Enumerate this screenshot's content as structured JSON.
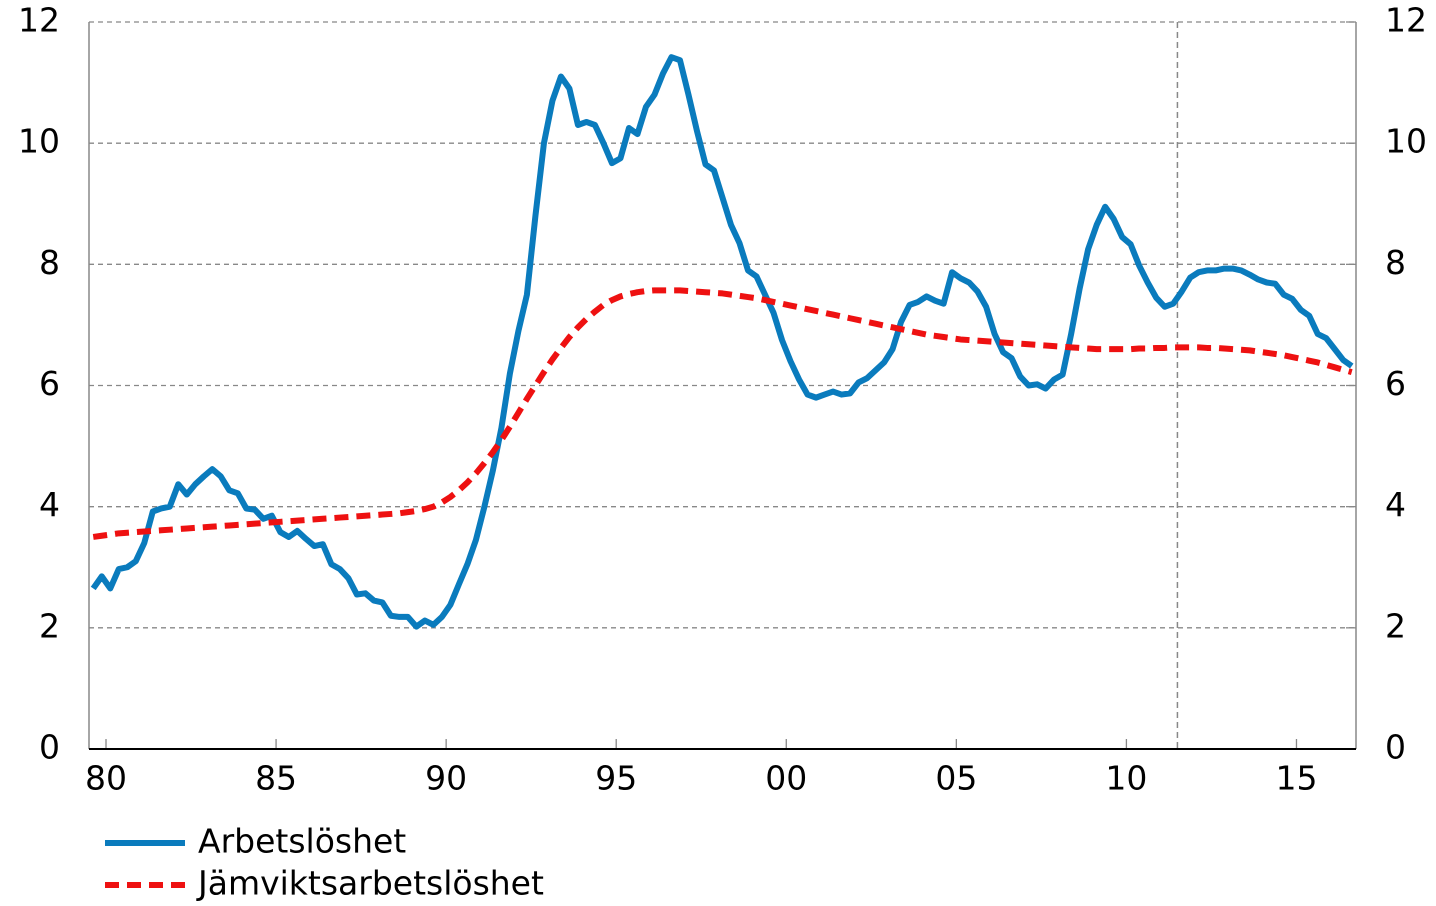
{
  "chart_data": {
    "type": "line",
    "x": [
      1980.125,
      1980.375,
      1980.625,
      1980.875,
      1981.125,
      1981.375,
      1981.625,
      1981.875,
      1982.125,
      1982.375,
      1982.625,
      1982.875,
      1983.125,
      1983.375,
      1983.625,
      1983.875,
      1984.125,
      1984.375,
      1984.625,
      1984.875,
      1985.125,
      1985.375,
      1985.625,
      1985.875,
      1986.125,
      1986.375,
      1986.625,
      1986.875,
      1987.125,
      1987.375,
      1987.625,
      1987.875,
      1988.125,
      1988.375,
      1988.625,
      1988.875,
      1989.125,
      1989.375,
      1989.625,
      1989.875,
      1990.125,
      1990.375,
      1990.625,
      1990.875,
      1991.125,
      1991.375,
      1991.625,
      1991.875,
      1992.125,
      1992.375,
      1992.625,
      1992.875,
      1993.125,
      1993.375,
      1993.625,
      1993.875,
      1994.125,
      1994.375,
      1994.625,
      1994.875,
      1995.125,
      1995.375,
      1995.625,
      1995.875,
      1996.125,
      1996.375,
      1996.625,
      1996.875,
      1997.125,
      1997.375,
      1997.625,
      1997.875,
      1998.125,
      1998.375,
      1998.625,
      1998.875,
      1999.125,
      1999.375,
      1999.625,
      1999.875,
      2000.125,
      2000.375,
      2000.625,
      2000.875,
      2001.125,
      2001.375,
      2001.625,
      2001.875,
      2002.125,
      2002.375,
      2002.625,
      2002.875,
      2003.125,
      2003.375,
      2003.625,
      2003.875,
      2004.125,
      2004.375,
      2004.625,
      2004.875,
      2005.125,
      2005.375,
      2005.625,
      2005.875,
      2006.125,
      2006.375,
      2006.625,
      2006.875,
      2007.125,
      2007.375,
      2007.625,
      2007.875,
      2008.125,
      2008.375,
      2008.625,
      2008.875,
      2009.125,
      2009.375,
      2009.625,
      2009.875,
      2010.125,
      2010.375,
      2010.625,
      2010.875,
      2011.125,
      2011.375,
      2011.625,
      2011.875,
      2012.125,
      2012.375,
      2012.625,
      2012.875,
      2013.125,
      2013.375,
      2013.625,
      2013.875,
      2014.125,
      2014.375,
      2014.625,
      2014.875,
      2015.125,
      2015.375,
      2015.625,
      2015.875,
      2016.125,
      2016.375,
      2016.625,
      2016.875,
      2017.125
    ],
    "series": [
      {
        "name": "Arbetslöshet",
        "color": "#0a7bbd",
        "style": "solid",
        "values": [
          2.65,
          2.85,
          2.65,
          2.97,
          3.0,
          3.1,
          3.4,
          3.92,
          3.97,
          4.0,
          4.37,
          4.2,
          4.37,
          4.5,
          4.62,
          4.5,
          4.27,
          4.22,
          3.97,
          3.95,
          3.8,
          3.85,
          3.58,
          3.5,
          3.6,
          3.47,
          3.35,
          3.38,
          3.05,
          2.97,
          2.82,
          2.55,
          2.57,
          2.45,
          2.42,
          2.2,
          2.18,
          2.18,
          2.02,
          2.12,
          2.05,
          2.18,
          2.38,
          2.72,
          3.05,
          3.45,
          4.0,
          4.6,
          5.3,
          6.2,
          6.9,
          7.5,
          8.8,
          10.0,
          10.7,
          11.1,
          10.9,
          10.3,
          10.35,
          10.3,
          10.0,
          9.67,
          9.75,
          10.25,
          10.15,
          10.6,
          10.8,
          11.15,
          11.42,
          11.37,
          10.8,
          10.2,
          9.65,
          9.55,
          9.1,
          8.65,
          8.35,
          7.9,
          7.8,
          7.5,
          7.2,
          6.75,
          6.4,
          6.1,
          5.85,
          5.8,
          5.85,
          5.9,
          5.85,
          5.87,
          6.05,
          6.12,
          6.25,
          6.38,
          6.6,
          7.05,
          7.33,
          7.38,
          7.47,
          7.4,
          7.35,
          7.87,
          7.77,
          7.7,
          7.55,
          7.3,
          6.85,
          6.55,
          6.45,
          6.15,
          6.0,
          6.02,
          5.95,
          6.1,
          6.18,
          6.85,
          7.6,
          8.25,
          8.65,
          8.95,
          8.75,
          8.45,
          8.33,
          7.98,
          7.7,
          7.45,
          7.3,
          7.35,
          7.55,
          7.78,
          7.87,
          7.9,
          7.9,
          7.93,
          7.93,
          7.9,
          7.83,
          7.75,
          7.7,
          7.68,
          7.5,
          7.43,
          7.25,
          7.15,
          6.85,
          6.78,
          6.6,
          6.42,
          6.32
        ]
      },
      {
        "name": "Jämviktsarbetslöshet",
        "color": "#ee1111",
        "style": "dashed",
        "values": [
          3.5,
          3.52,
          3.54,
          3.56,
          3.57,
          3.58,
          3.59,
          3.6,
          3.61,
          3.62,
          3.63,
          3.64,
          3.65,
          3.66,
          3.67,
          3.68,
          3.69,
          3.7,
          3.71,
          3.72,
          3.73,
          3.74,
          3.75,
          3.76,
          3.77,
          3.78,
          3.79,
          3.8,
          3.81,
          3.82,
          3.83,
          3.84,
          3.85,
          3.86,
          3.87,
          3.88,
          3.89,
          3.91,
          3.93,
          3.96,
          4.0,
          4.07,
          4.16,
          4.27,
          4.4,
          4.55,
          4.72,
          4.9,
          5.1,
          5.32,
          5.55,
          5.78,
          6.0,
          6.22,
          6.43,
          6.62,
          6.8,
          6.96,
          7.1,
          7.22,
          7.33,
          7.41,
          7.47,
          7.51,
          7.54,
          7.56,
          7.57,
          7.57,
          7.57,
          7.57,
          7.56,
          7.55,
          7.54,
          7.53,
          7.52,
          7.5,
          7.48,
          7.46,
          7.44,
          7.41,
          7.38,
          7.35,
          7.32,
          7.29,
          7.26,
          7.23,
          7.2,
          7.17,
          7.14,
          7.11,
          7.08,
          7.05,
          7.02,
          6.99,
          6.96,
          6.93,
          6.9,
          6.87,
          6.84,
          6.82,
          6.8,
          6.78,
          6.76,
          6.75,
          6.74,
          6.73,
          6.72,
          6.71,
          6.7,
          6.69,
          6.68,
          6.67,
          6.66,
          6.65,
          6.64,
          6.63,
          6.62,
          6.61,
          6.6,
          6.6,
          6.6,
          6.6,
          6.6,
          6.61,
          6.61,
          6.62,
          6.62,
          6.63,
          6.63,
          6.63,
          6.63,
          6.62,
          6.62,
          6.61,
          6.6,
          6.59,
          6.58,
          6.56,
          6.54,
          6.52,
          6.5,
          6.47,
          6.44,
          6.41,
          6.38,
          6.34,
          6.3,
          6.26,
          6.22
        ]
      }
    ],
    "xlim": [
      1980,
      2017.25
    ],
    "xticks": [
      {
        "value": 1980.5,
        "label": "80"
      },
      {
        "value": 1985.5,
        "label": "85"
      },
      {
        "value": 1990.5,
        "label": "90"
      },
      {
        "value": 1995.5,
        "label": "95"
      },
      {
        "value": 2000.5,
        "label": "00"
      },
      {
        "value": 2005.5,
        "label": "05"
      },
      {
        "value": 2010.5,
        "label": "10"
      },
      {
        "value": 2015.5,
        "label": "15"
      }
    ],
    "ylim": [
      0,
      12
    ],
    "yticks": [
      0,
      2,
      4,
      6,
      8,
      10,
      12
    ],
    "y2lim": [
      0,
      12
    ],
    "y2ticks": [
      0,
      2,
      4,
      6,
      8,
      10,
      12
    ],
    "vline": 2012,
    "grid": true,
    "legend": "bottom-left"
  }
}
